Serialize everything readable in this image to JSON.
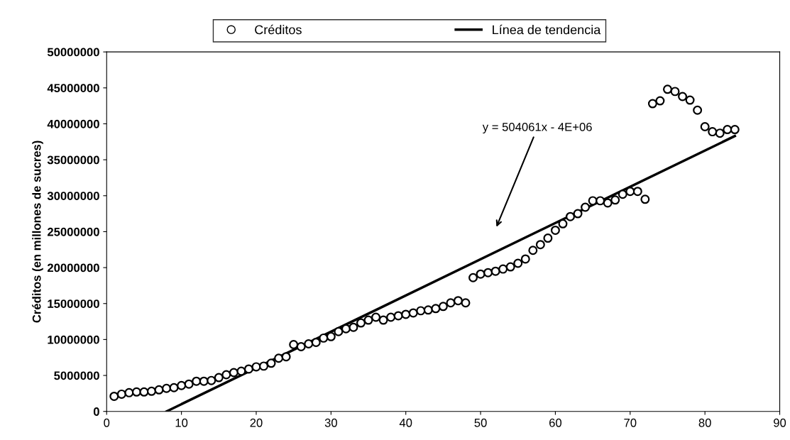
{
  "chart_data": {
    "type": "scatter",
    "ylabel": "Créditos (en millones de sucres)",
    "xlim": [
      0,
      90
    ],
    "xticks": [
      0,
      10,
      20,
      30,
      40,
      50,
      60,
      70,
      80,
      90
    ],
    "ylim": [
      0,
      50000000
    ],
    "yticks": [
      0,
      5000000,
      10000000,
      15000000,
      20000000,
      25000000,
      30000000,
      35000000,
      40000000,
      45000000,
      50000000
    ],
    "grid": false,
    "legend": "top",
    "marker": "circle",
    "annotations": [
      "y = 504061x - 4E+06"
    ],
    "series": [
      {
        "name": "Créditos",
        "color": "#000000",
        "x": [
          1,
          2,
          3,
          4,
          5,
          6,
          7,
          8,
          9,
          10,
          11,
          12,
          13,
          14,
          15,
          16,
          17,
          18,
          19,
          20,
          21,
          22,
          23,
          24,
          25,
          26,
          27,
          28,
          29,
          30,
          31,
          32,
          33,
          34,
          35,
          36,
          37,
          38,
          39,
          40,
          41,
          42,
          43,
          44,
          45,
          46,
          47,
          48,
          49,
          50,
          51,
          52,
          53,
          54,
          55,
          56,
          57,
          58,
          59,
          60,
          61,
          62,
          63,
          64,
          65,
          66,
          67,
          68,
          69,
          70,
          71,
          72,
          73,
          74,
          75,
          76,
          77,
          78,
          79,
          80,
          81,
          82,
          83,
          84
        ],
        "values": [
          2100000,
          2400000,
          2600000,
          2700000,
          2700000,
          2800000,
          3000000,
          3200000,
          3300000,
          3600000,
          3800000,
          4200000,
          4200000,
          4300000,
          4700000,
          5100000,
          5400000,
          5600000,
          5900000,
          6200000,
          6300000,
          6700000,
          7400000,
          7600000,
          9300000,
          9000000,
          9400000,
          9600000,
          10200000,
          10400000,
          11100000,
          11500000,
          11700000,
          12300000,
          12700000,
          13100000,
          12700000,
          13100000,
          13300000,
          13500000,
          13700000,
          14000000,
          14100000,
          14300000,
          14600000,
          15100000,
          15400000,
          15100000,
          18600000,
          19100000,
          19300000,
          19500000,
          19800000,
          20100000,
          20600000,
          21200000,
          22400000,
          23200000,
          24100000,
          25200000,
          26100000,
          27100000,
          27500000,
          28400000,
          29300000,
          29300000,
          29000000,
          29400000,
          30200000,
          30600000,
          30600000,
          29500000,
          42800000,
          43200000,
          44800000,
          44500000,
          43800000,
          43300000,
          41900000,
          39600000,
          38900000,
          38700000,
          39200000,
          39200000
        ]
      },
      {
        "name": "Línea de tendencia",
        "type": "line",
        "color": "#000000",
        "marker": "none",
        "line_style": "solid",
        "x": [
          8,
          84
        ],
        "values": [
          0,
          38300000
        ]
      }
    ]
  }
}
